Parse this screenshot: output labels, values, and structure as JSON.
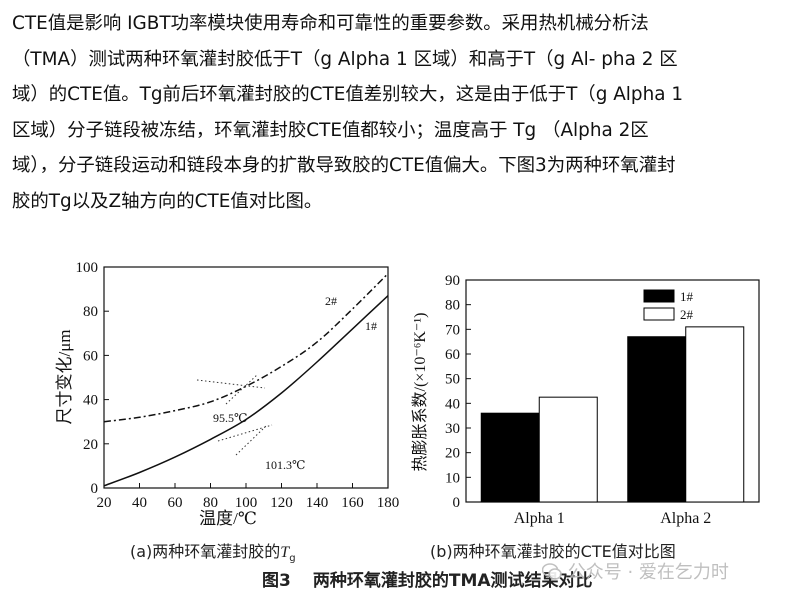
{
  "paragraph": {
    "lines": [
      "CTE值是影响 IGBT功率模块使用寿命和可靠性的重要参数。采用热机械分析法",
      "（TMA）测试两种环氧灌封胶低于T（g Alpha 1 区域）和高于T（g Al- pha 2 区",
      "域）的CTE值。Tg前后环氧灌封胶的CTE值差别较大，这是由于低于T（g Alpha 1",
      "区域）分子链段被冻结，环氧灌封胶CTE值都较小；温度高于 Tg （Alpha 2区",
      "域），分子链段运动和链段本身的扩散导致胶的CTE值偏大。下图3为两种环氧灌封",
      "胶的Tg以及Z轴方向的CTE值对比图。"
    ]
  },
  "figure": {
    "label": "图3",
    "title": "两种环氧灌封胶的TMA测试结果对比",
    "caption_a": "(a)两种环氧灌封胶的",
    "caption_a_sym": "T",
    "caption_a_sub": "g",
    "caption_b": "(b)两种环氧灌封胶的CTE值对比图"
  },
  "watermark": {
    "text": "公众号 · 爱在乞力时"
  },
  "colors": {
    "text": "#111111",
    "bar_series1": "#000000",
    "bar_series2": "#ffffff"
  },
  "chart_data": [
    {
      "type": "line",
      "xlabel": "温度/℃",
      "ylabel": "尺寸变化/μm",
      "xlim": [
        20,
        180
      ],
      "ylim": [
        0,
        100
      ],
      "xticks": [
        20,
        40,
        60,
        80,
        100,
        120,
        140,
        160,
        180
      ],
      "yticks": [
        0,
        20,
        40,
        60,
        80,
        100
      ],
      "grid": false,
      "series": [
        {
          "name": "1#",
          "style": "solid",
          "x": [
            20,
            40,
            60,
            80,
            100,
            120,
            140,
            160,
            180
          ],
          "y": [
            1,
            7,
            14,
            22,
            31,
            43,
            57,
            72,
            87
          ]
        },
        {
          "name": "2#",
          "style": "dashdot",
          "x": [
            20,
            40,
            60,
            80,
            100,
            120,
            140,
            160,
            180
          ],
          "y": [
            30,
            32,
            35,
            39,
            46,
            55,
            66,
            81,
            97
          ]
        }
      ],
      "annotations": [
        {
          "text": "95.5℃",
          "x": 95.5,
          "y": 44
        },
        {
          "text": "101.3℃",
          "x": 101.3,
          "y": 30
        }
      ]
    },
    {
      "type": "bar",
      "categories": [
        "Alpha 1",
        "Alpha 2"
      ],
      "ylabel": "热膨胀系数/(×10⁻⁶K⁻¹)",
      "ylim": [
        0,
        90
      ],
      "yticks": [
        0,
        10,
        20,
        30,
        40,
        50,
        60,
        70,
        80,
        90
      ],
      "legend_position": "top-left",
      "grid": false,
      "series": [
        {
          "name": "1#",
          "values": [
            36,
            67
          ]
        },
        {
          "name": "2#",
          "values": [
            42.5,
            71
          ]
        }
      ]
    }
  ]
}
